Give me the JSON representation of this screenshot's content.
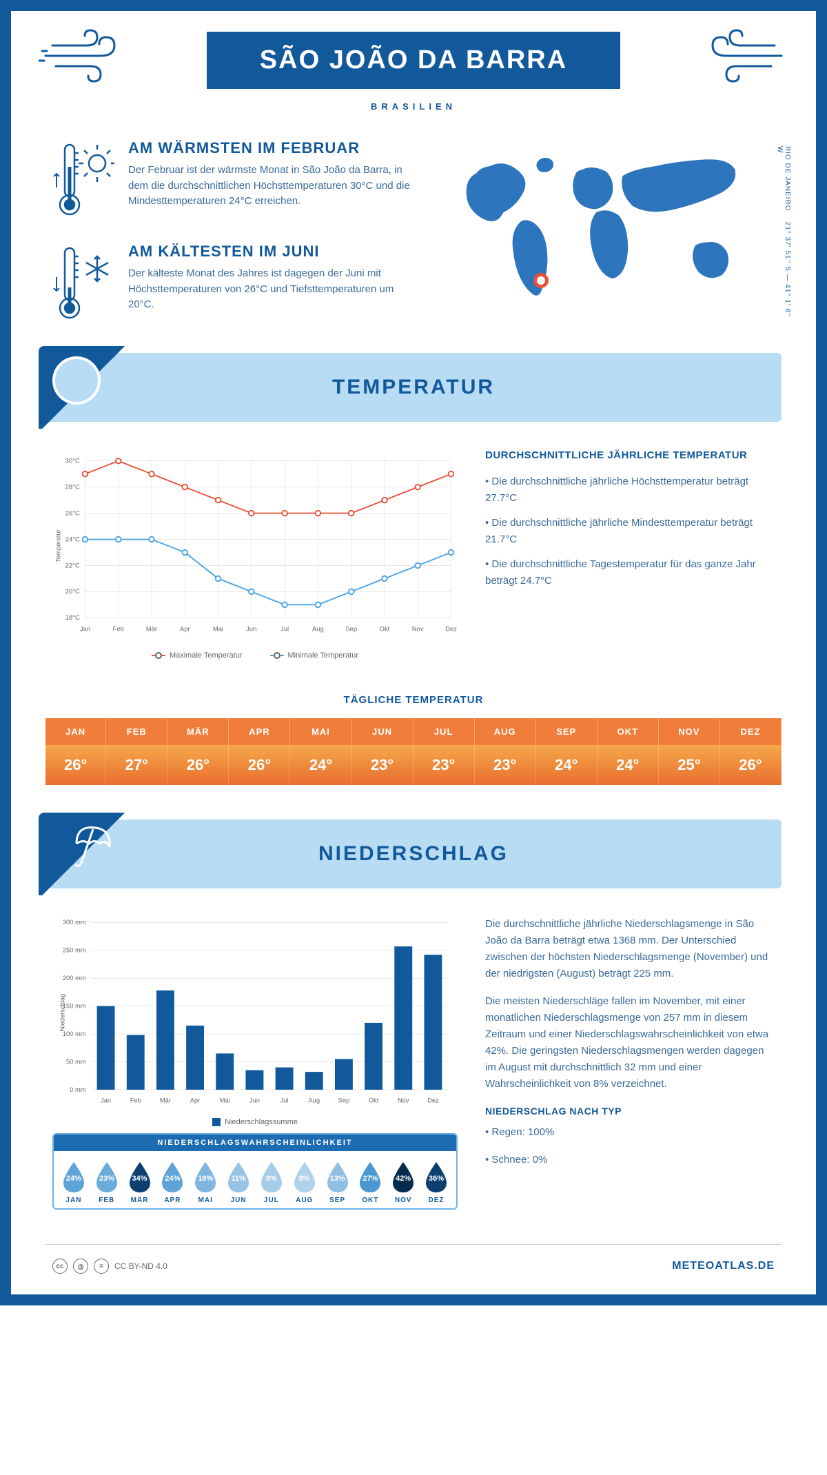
{
  "header": {
    "title": "SÃO JOÃO DA BARRA",
    "subtitle": "BRASILIEN",
    "coordinates": "21° 37' 51'' S — 41° 1' 8'' W",
    "region": "RIO DE JANEIRO"
  },
  "intro": {
    "warmest": {
      "title": "AM WÄRMSTEN IM FEBRUAR",
      "text": "Der Februar ist der wärmste Monat in São João da Barra, in dem die durchschnittlichen Höchsttemperaturen 30°C und die Mindesttemperaturen 24°C erreichen."
    },
    "coldest": {
      "title": "AM KÄLTESTEN IM JUNI",
      "text": "Der kälteste Monat des Jahres ist dagegen der Juni mit Höchsttemperaturen von 26°C und Tiefsttemperaturen um 20°C."
    }
  },
  "temperature": {
    "section_title": "TEMPERATUR",
    "chart": {
      "type": "line",
      "months": [
        "Jan",
        "Feb",
        "Mär",
        "Apr",
        "Mai",
        "Jun",
        "Jul",
        "Aug",
        "Sep",
        "Okt",
        "Nov",
        "Dez"
      ],
      "max_values": [
        29,
        30,
        29,
        28,
        27,
        26,
        26,
        26,
        26,
        27,
        28,
        29
      ],
      "min_values": [
        24,
        24,
        24,
        23,
        21,
        20,
        19,
        19,
        20,
        21,
        22,
        23
      ],
      "ylim": [
        18,
        30
      ],
      "ytick_step": 2,
      "max_color": "#e7533a",
      "min_color": "#4ba3e3",
      "grid_color": "#cccccc",
      "background": "#ffffff",
      "ylabel": "Temperatur",
      "legend_max": "Maximale Temperatur",
      "legend_min": "Minimale Temperatur"
    },
    "side": {
      "title": "DURCHSCHNITTLICHE JÄHRLICHE TEMPERATUR",
      "b1": "• Die durchschnittliche jährliche Höchsttemperatur beträgt 27.7°C",
      "b2": "• Die durchschnittliche jährliche Mindesttemperatur beträgt 21.7°C",
      "b3": "• Die durchschnittliche Tagestemperatur für das ganze Jahr beträgt 24.7°C"
    },
    "daily": {
      "title": "TÄGLICHE TEMPERATUR",
      "months": [
        "JAN",
        "FEB",
        "MÄR",
        "APR",
        "MAI",
        "JUN",
        "JUL",
        "AUG",
        "SEP",
        "OKT",
        "NOV",
        "DEZ"
      ],
      "values": [
        "26°",
        "27°",
        "26°",
        "26°",
        "24°",
        "23°",
        "23°",
        "23°",
        "24°",
        "24°",
        "25°",
        "26°"
      ],
      "header_bg": "#f07e3a",
      "cell_bg_top": "#f5a84a",
      "cell_bg_bottom": "#e96e2e"
    }
  },
  "precipitation": {
    "section_title": "NIEDERSCHLAG",
    "chart": {
      "type": "bar",
      "months": [
        "Jan",
        "Feb",
        "Mär",
        "Apr",
        "Mai",
        "Jun",
        "Jul",
        "Aug",
        "Sep",
        "Okt",
        "Nov",
        "Dez"
      ],
      "values": [
        150,
        98,
        178,
        115,
        65,
        35,
        40,
        32,
        55,
        120,
        257,
        242
      ],
      "ylim": [
        0,
        300
      ],
      "ytick_step": 50,
      "bar_color": "#11599b",
      "grid_color": "#cccccc",
      "ylabel": "Niederschlag",
      "legend": "Niederschlagssumme"
    },
    "text": {
      "p1": "Die durchschnittliche jährliche Niederschlagsmenge in São João da Barra beträgt etwa 1368 mm. Der Unterschied zwischen der höchsten Niederschlagsmenge (November) und der niedrigsten (August) beträgt 225 mm.",
      "p2": "Die meisten Niederschläge fallen im November, mit einer monatlichen Niederschlagsmenge von 257 mm in diesem Zeitraum und einer Niederschlagswahrscheinlichkeit von etwa 42%. Die geringsten Niederschlagsmengen werden dagegen im August mit durchschnittlich 32 mm und einer Wahrscheinlichkeit von 8% verzeichnet.",
      "type_title": "NIEDERSCHLAG NACH TYP",
      "type1": "• Regen: 100%",
      "type2": "• Schnee: 0%"
    },
    "probability": {
      "title": "NIEDERSCHLAGSWAHRSCHEINLICHKEIT",
      "months": [
        "JAN",
        "FEB",
        "MÄR",
        "APR",
        "MAI",
        "JUN",
        "JUL",
        "AUG",
        "SEP",
        "OKT",
        "NOV",
        "DEZ"
      ],
      "values": [
        "24%",
        "23%",
        "34%",
        "24%",
        "18%",
        "11%",
        "9%",
        "8%",
        "13%",
        "27%",
        "42%",
        "36%"
      ],
      "colors": [
        "#5fa4d8",
        "#6aabdc",
        "#0d3f70",
        "#5fa4d8",
        "#7eb6df",
        "#97c4e5",
        "#a5cce8",
        "#afd1ea",
        "#8fc0e3",
        "#4a97d1",
        "#072b4d",
        "#0d3f70"
      ]
    }
  },
  "footer": {
    "license": "CC BY-ND 4.0",
    "site": "METEOATLAS.DE"
  },
  "colors": {
    "primary": "#11599b",
    "light_blue": "#b7dcf4",
    "text": "#3a6a9a"
  }
}
